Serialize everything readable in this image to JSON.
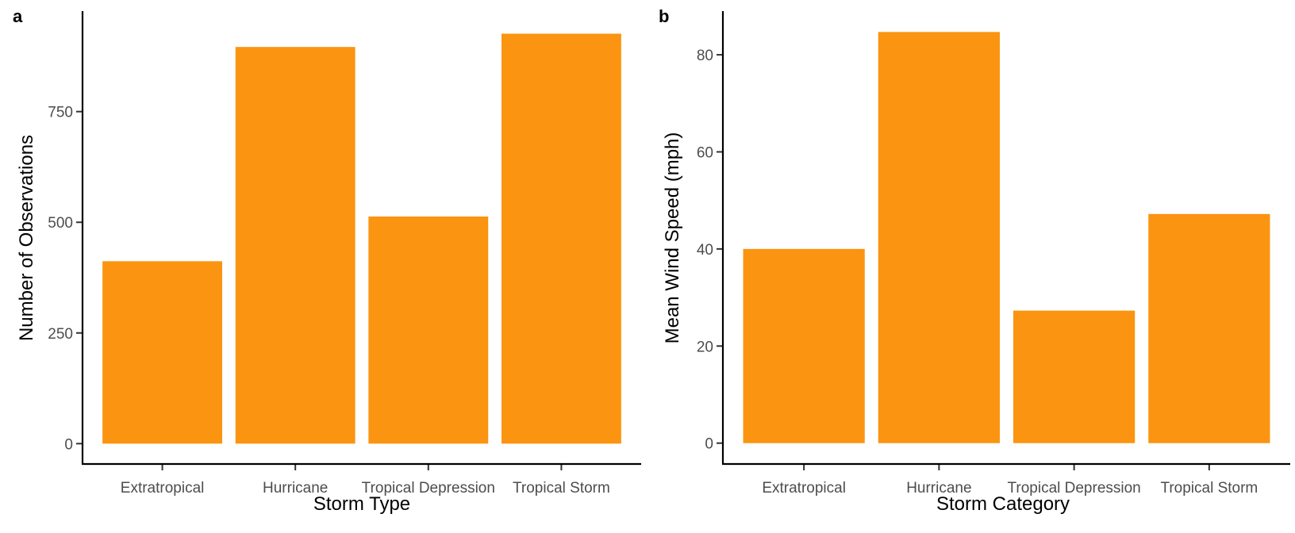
{
  "colors": {
    "bar": "#FB9410",
    "axis": "#000000",
    "tick_text": "#4d4d4d"
  },
  "chart_data": [
    {
      "type": "bar",
      "panel_label": "a",
      "categories": [
        "Extratropical",
        "Hurricane",
        "Tropical Depression",
        "Tropical Storm"
      ],
      "values": [
        412,
        896,
        513,
        926
      ],
      "xlabel": "Storm Type",
      "ylabel": "Number of Observations",
      "yticks": [
        0,
        250,
        500,
        750
      ],
      "ylim": [
        -46,
        977
      ],
      "grid": false,
      "legend": "none"
    },
    {
      "type": "bar",
      "panel_label": "b",
      "categories": [
        "Extratropical",
        "Hurricane",
        "Tropical Depression",
        "Tropical Storm"
      ],
      "values": [
        40,
        84.7,
        27.3,
        47.2
      ],
      "xlabel": "Storm Category",
      "ylabel": "Mean Wind Speed (mph)",
      "yticks": [
        0,
        20,
        40,
        60,
        80
      ],
      "ylim": [
        -4.3,
        89
      ],
      "grid": false,
      "legend": "none"
    }
  ]
}
